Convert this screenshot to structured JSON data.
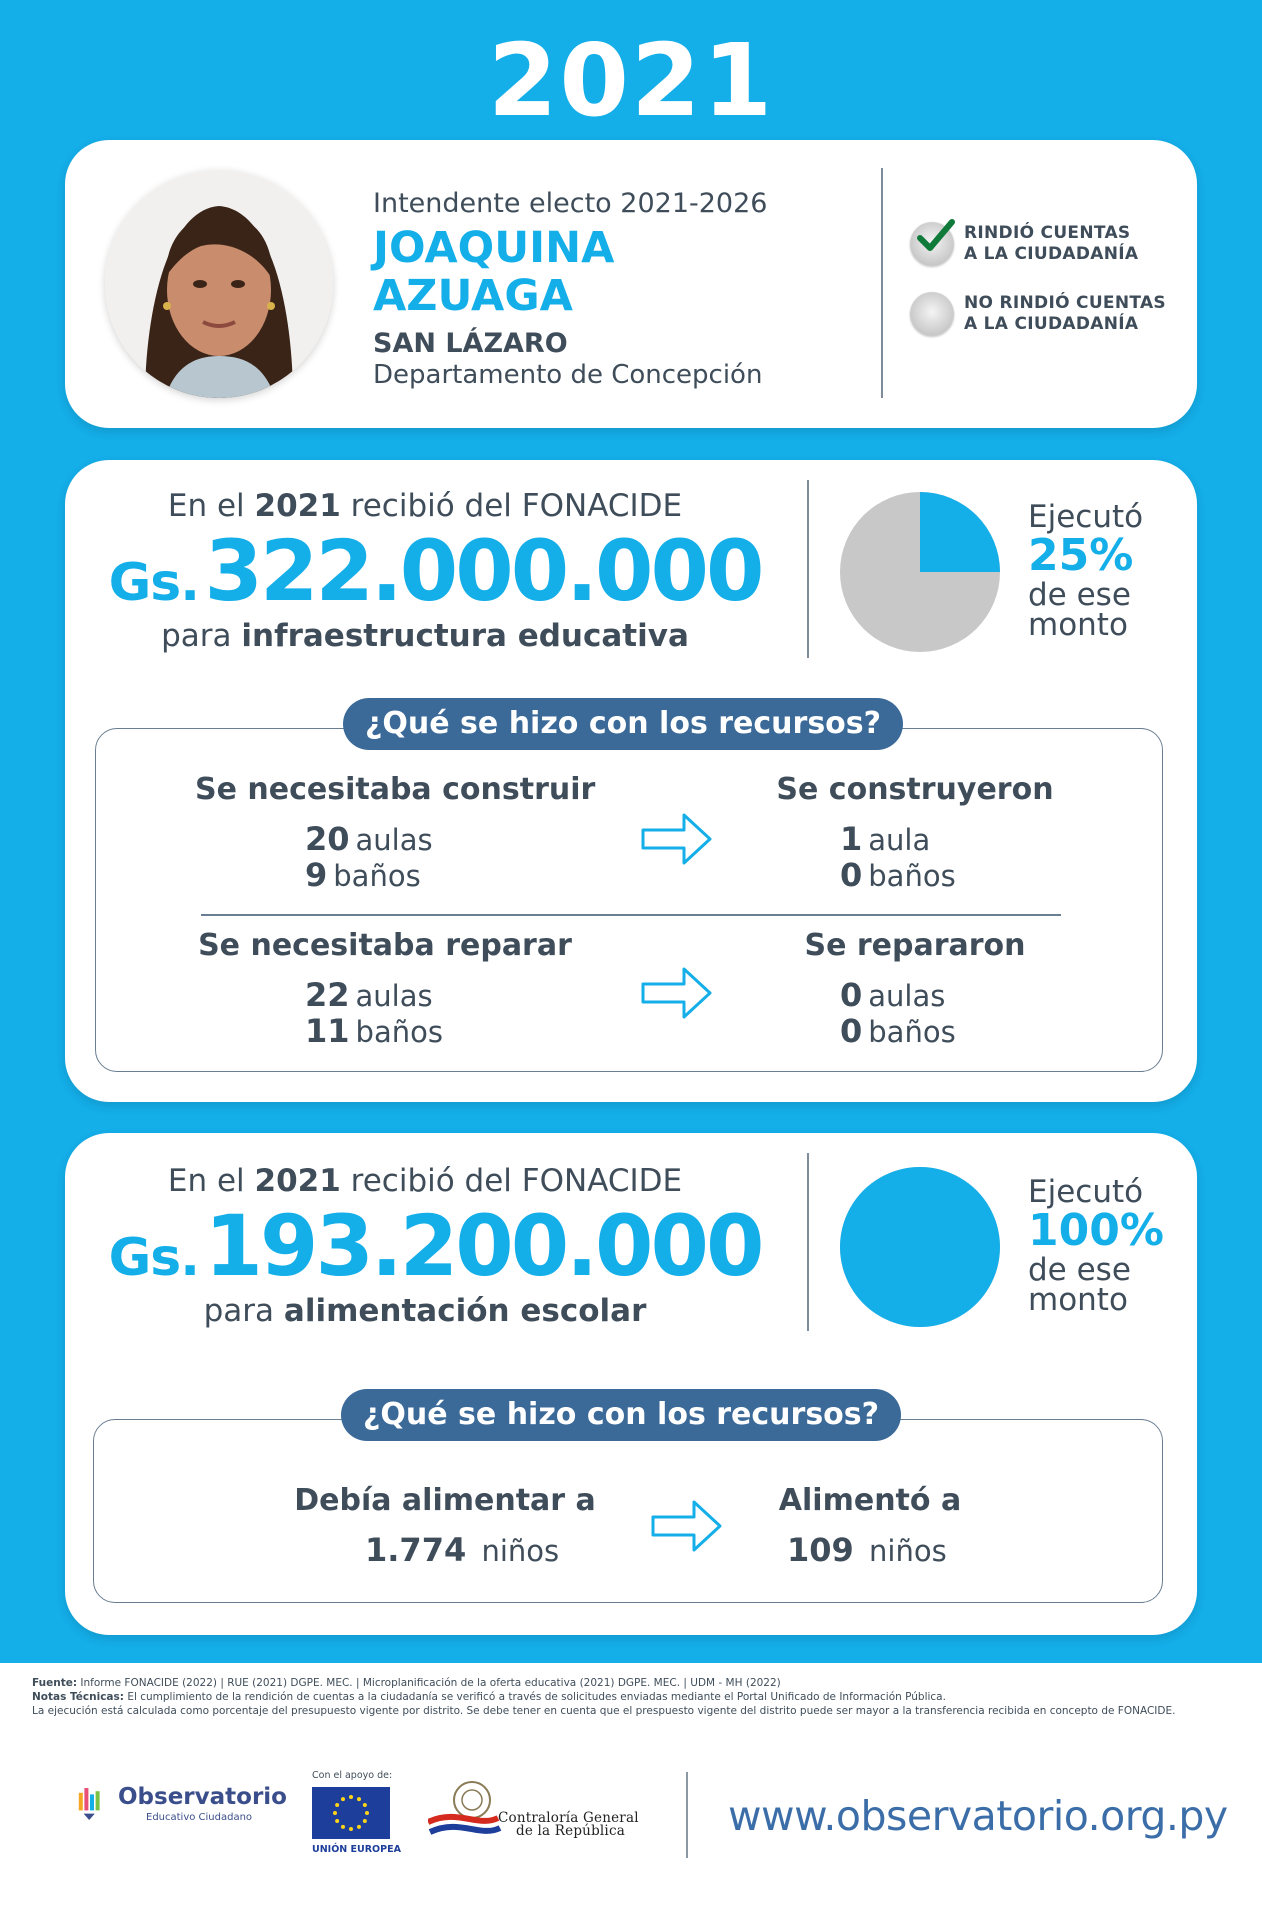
{
  "year": "2021",
  "profile": {
    "role": "Intendente electo 2021-2026",
    "name_line1": "JOAQUINA",
    "name_line2": "AZUAGA",
    "district": "SAN LÁZARO",
    "department": "Departamento de Concepción"
  },
  "accountability": {
    "rendered": {
      "line1": "RINDIÓ CUENTAS",
      "line2": "A LA CIUDADANÍA",
      "checked": true
    },
    "not_rendered": {
      "line1": "NO RINDIÓ CUENTAS",
      "line2": "A LA CIUDADANÍA",
      "checked": false
    }
  },
  "infra": {
    "head_pre": "En el",
    "head_year": "2021",
    "head_post": "recibió del FONACIDE",
    "currency": "Gs.",
    "amount": "322.000.000",
    "sub_pre": "para",
    "sub_bold": "infraestructura educativa",
    "exec_label": "Ejecutó",
    "exec_pct": "25%",
    "exec_value": 25,
    "exec_tail1": "de ese",
    "exec_tail2": "monto",
    "question": "¿Qué se hizo con los recursos?",
    "build_need_title": "Se necesitaba construir",
    "build_need": [
      {
        "n": "20",
        "unit": "aulas"
      },
      {
        "n": "9",
        "unit": "baños"
      }
    ],
    "build_done_title": "Se construyeron",
    "build_done": [
      {
        "n": "1",
        "unit": "aula"
      },
      {
        "n": "0",
        "unit": "baños"
      }
    ],
    "repair_need_title": "Se necesitaba reparar",
    "repair_need": [
      {
        "n": "22",
        "unit": "aulas"
      },
      {
        "n": "11",
        "unit": "baños"
      }
    ],
    "repair_done_title": "Se repararon",
    "repair_done": [
      {
        "n": "0",
        "unit": "aulas"
      },
      {
        "n": "0",
        "unit": "baños"
      }
    ]
  },
  "food": {
    "head_pre": "En el",
    "head_year": "2021",
    "head_post": "recibió del FONACIDE",
    "currency": "Gs.",
    "amount": "193.200.000",
    "sub_pre": "para",
    "sub_bold": "alimentación escolar",
    "exec_label": "Ejecutó",
    "exec_pct": "100%",
    "exec_value": 100,
    "exec_tail1": "de ese",
    "exec_tail2": "monto",
    "question": "¿Qué se hizo con los recursos?",
    "need_title": "Debía alimentar a",
    "need_n": "1.774",
    "need_unit": "niños",
    "done_title": "Alimentó a",
    "done_n": "109",
    "done_unit": "niños"
  },
  "footer": {
    "source_label": "Fuente:",
    "source_text": "Informe FONACIDE (2022) | RUE (2021) DGPE. MEC. | Microplanificación de la oferta educativa (2021) DGPE. MEC. | UDM - MH (2022)",
    "notes_label": "Notas Técnicas:",
    "notes_text1": "El cumplimiento de la rendición de cuentas a la ciudadanía se verificó a través de solicitudes enviadas mediante el Portal Unificado de Información Pública.",
    "notes_text2": "La ejecución está calculada como porcentaje del presupuesto vigente por distrito. Se debe tener en cuenta que el prespuesto vigente del distrito puede ser mayor a la transferencia recibida en concepto de FONACIDE.",
    "obs_name": "Observatorio",
    "obs_sub": "Educativo Ciudadano",
    "eu_support": "Con el apoyo de:",
    "eu_name": "UNIÓN EUROPEA",
    "cgr_line1": "Contraloría General",
    "cgr_line2": "de la República",
    "url": "www.observatorio.org.py"
  },
  "colors": {
    "accent": "#14aee9",
    "dark": "#3f4d5a",
    "pill": "#3b6a99",
    "pie_rest": "#c8c8c8"
  }
}
